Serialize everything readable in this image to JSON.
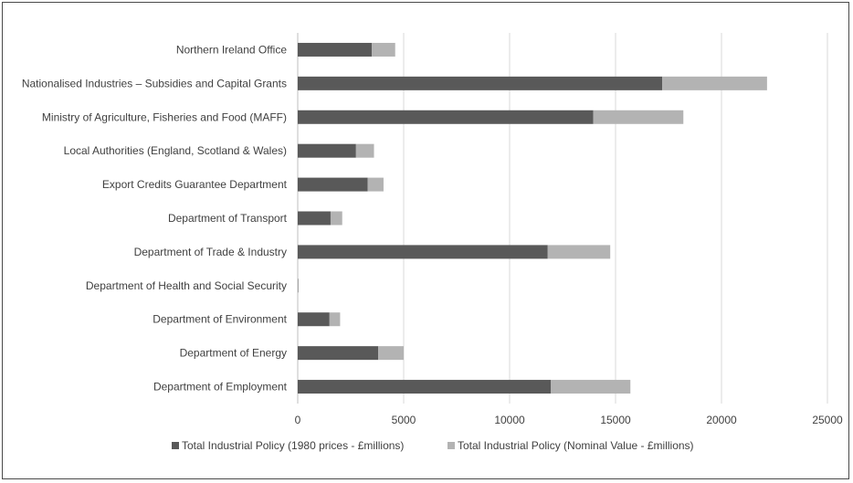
{
  "chart_data": {
    "type": "bar",
    "orientation": "horizontal",
    "stacked": true,
    "categories": [
      "Northern Ireland Office",
      "Nationalised Industries – Subsidies and Capital Grants",
      "Ministry of Agriculture, Fisheries and Food (MAFF)",
      "Local Authorities (England, Scotland & Wales)",
      "Export Credits Guarantee Department",
      "Department of Transport",
      "Department of Trade & Industry",
      "Department of Health and Social Security",
      "Department of Environment",
      "Department of Energy",
      "Department of Employment"
    ],
    "series": [
      {
        "name": "Total Industrial Policy (1980 prices - £millions)",
        "color": "#595959",
        "values": [
          3500,
          17200,
          13950,
          2750,
          3300,
          1550,
          11800,
          20,
          1500,
          3800,
          11950
        ]
      },
      {
        "name": "Total Industrial Policy (Nominal Value - £millions)",
        "color": "#b3b3b3",
        "values": [
          1100,
          4950,
          4250,
          850,
          750,
          550,
          2950,
          10,
          500,
          1200,
          3750
        ]
      }
    ],
    "x_ticks": [
      "0",
      "5000",
      "10000",
      "15000",
      "20000",
      "25000"
    ],
    "xlim": [
      0,
      25000
    ],
    "xlabel": "",
    "ylabel": "",
    "grid": true,
    "legend_position": "bottom"
  }
}
